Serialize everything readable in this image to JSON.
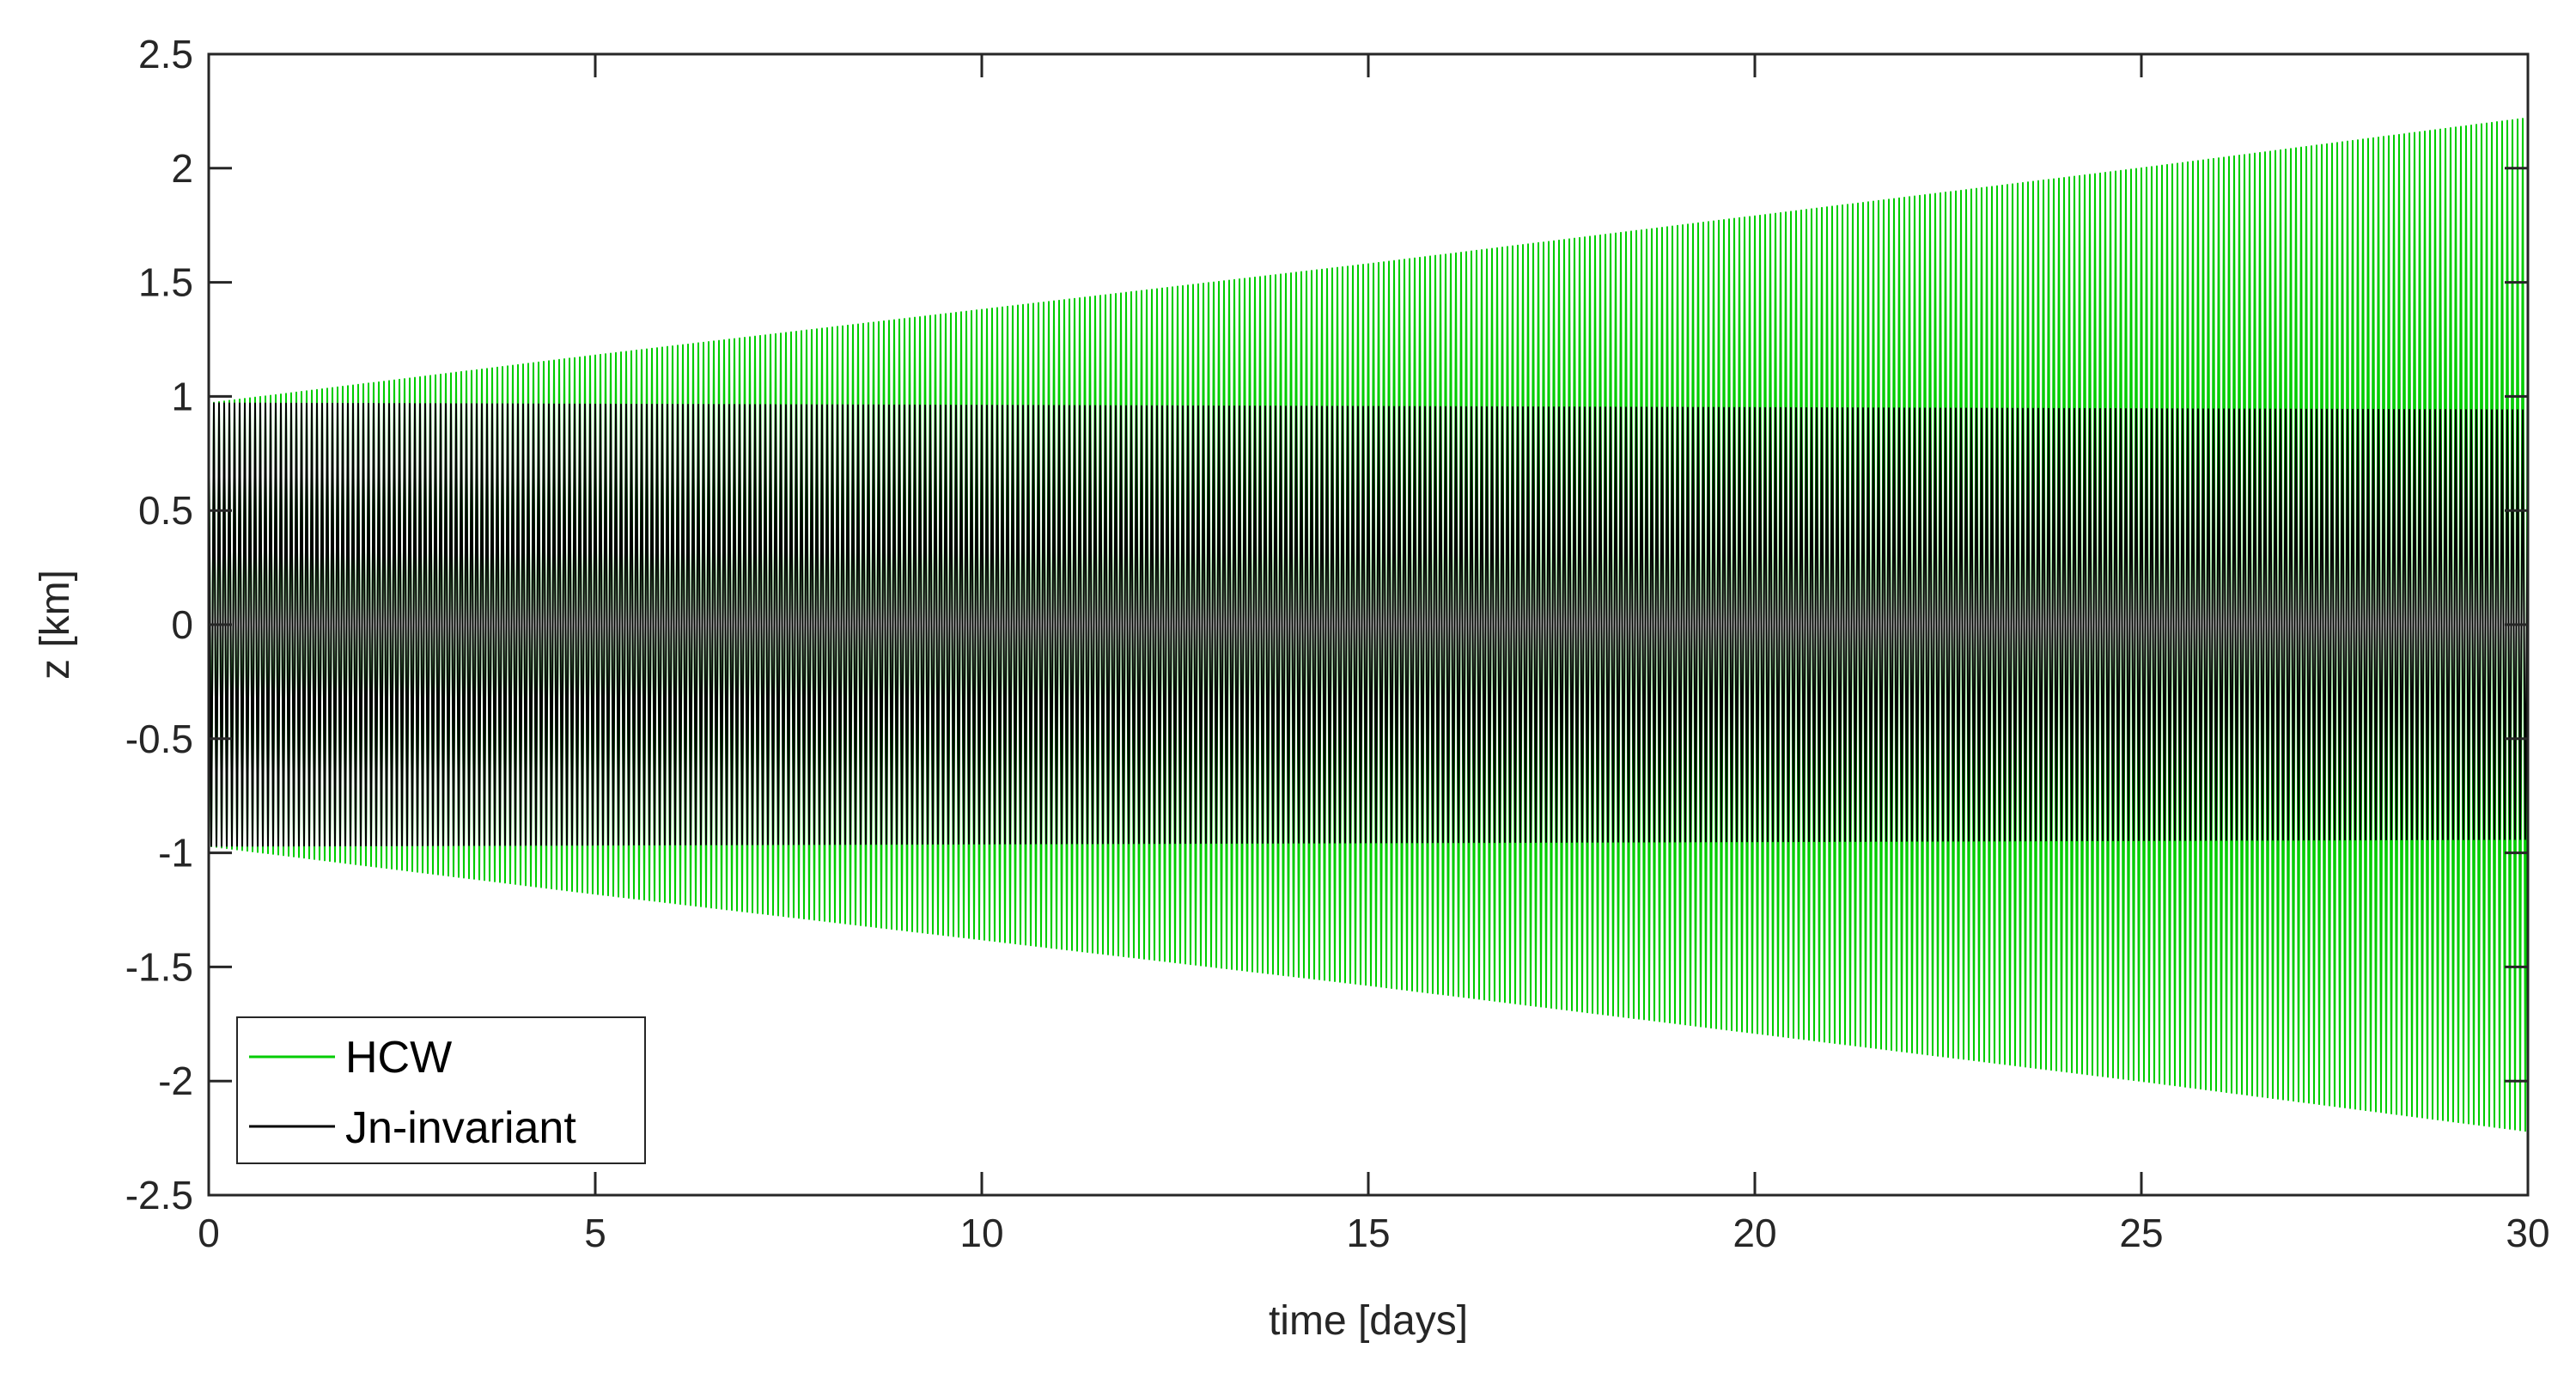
{
  "chart_data": {
    "type": "line",
    "title": "",
    "xlabel": "time [days]",
    "ylabel": "z [km]",
    "xlim": [
      0,
      30
    ],
    "ylim": [
      -2.5,
      2.5
    ],
    "x_ticks": [
      0,
      5,
      10,
      15,
      20,
      25,
      30
    ],
    "x_tick_labels": [
      "0",
      "5",
      "10",
      "15",
      "20",
      "25",
      "30"
    ],
    "y_ticks": [
      2.5,
      2,
      1.5,
      1,
      0.5,
      0,
      -0.5,
      -1,
      -1.5,
      -2,
      -2.5
    ],
    "y_tick_labels": [
      "2.5",
      "2",
      "1.5",
      "1",
      "0.5",
      "0",
      "-0.5",
      "-1",
      "-1.5",
      "-2",
      "-2.5"
    ],
    "grid": false,
    "legend_position": "bottom-left",
    "series": [
      {
        "name": "HCW",
        "color": "#00cc00",
        "oscillating": true,
        "oscillations": 450,
        "envelope_x": [
          0,
          5,
          10,
          15,
          20,
          25,
          30
        ],
        "envelope_amplitude": [
          0.97,
          1.18,
          1.38,
          1.58,
          1.79,
          2.0,
          2.22
        ]
      },
      {
        "name": "Jn-invariant",
        "color": "#000000",
        "oscillating": true,
        "oscillations": 450,
        "envelope_x": [
          0,
          5,
          10,
          15,
          20,
          25,
          30
        ],
        "envelope_amplitude": [
          0.97,
          0.965,
          0.96,
          0.955,
          0.95,
          0.945,
          0.94
        ]
      }
    ]
  }
}
